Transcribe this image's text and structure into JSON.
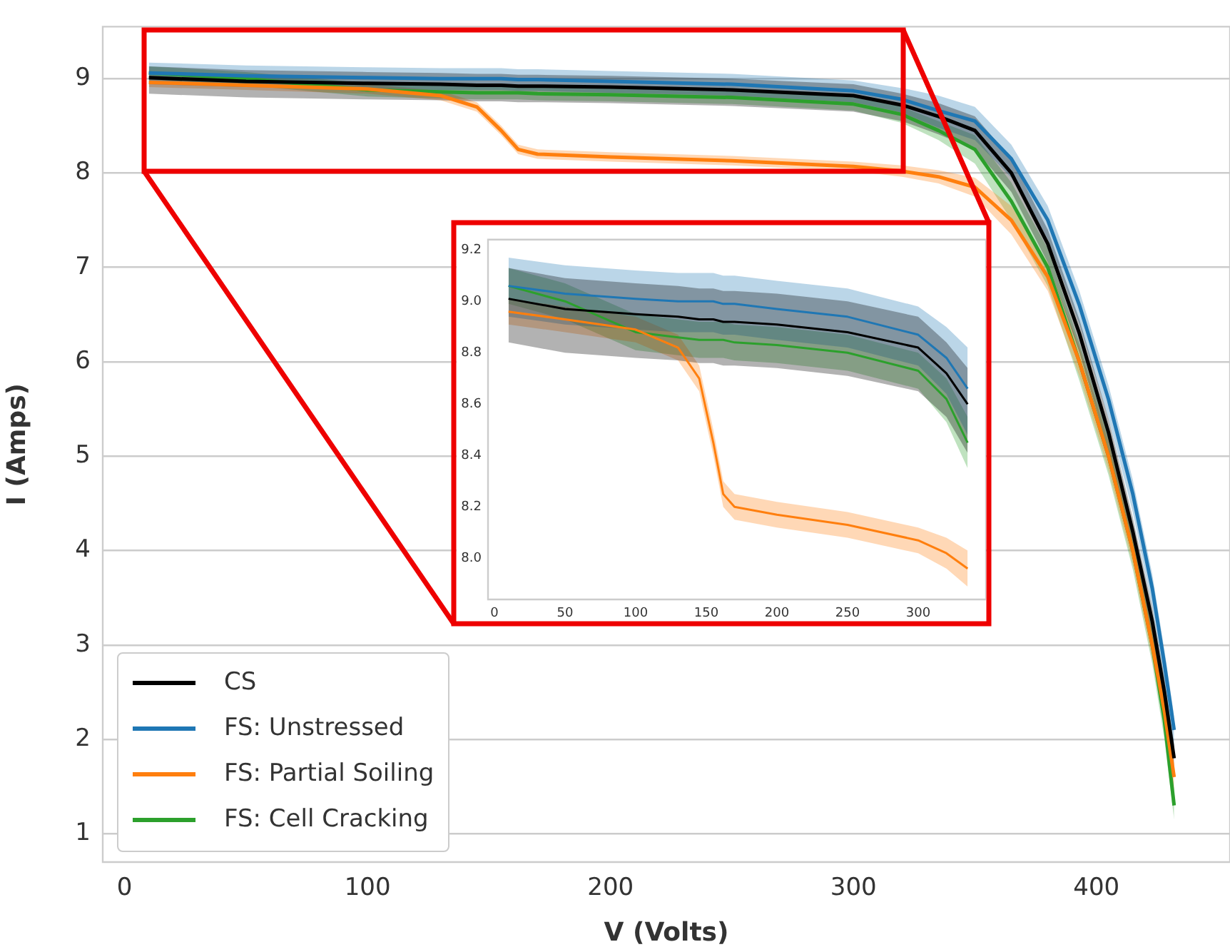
{
  "chart_data": [
    {
      "type": "line",
      "xlabel": "V (Volts)",
      "ylabel": "I (Amps)",
      "xlim": [
        -9,
        455
      ],
      "ylim": [
        0.7,
        9.55
      ],
      "xticks": [
        0,
        100,
        200,
        300,
        400
      ],
      "yticks": [
        1,
        2,
        3,
        4,
        5,
        6,
        7,
        8,
        9
      ],
      "grid": "y",
      "legend": "bottom left",
      "series": [
        {
          "name": "CS",
          "color": "#000000",
          "x": [
            10,
            50,
            100,
            130,
            145,
            155,
            162,
            170,
            200,
            250,
            300,
            320,
            335,
            350,
            365,
            380,
            393,
            405,
            415,
            423,
            428,
            432
          ],
          "values": [
            9.01,
            8.97,
            8.95,
            8.94,
            8.93,
            8.93,
            8.92,
            8.92,
            8.91,
            8.88,
            8.82,
            8.72,
            8.6,
            8.45,
            8.0,
            7.25,
            6.3,
            5.25,
            4.2,
            3.25,
            2.5,
            1.8
          ],
          "lower": [
            8.84,
            8.8,
            8.78,
            8.77,
            8.76,
            8.76,
            8.75,
            8.75,
            8.74,
            8.71,
            8.65,
            8.55,
            8.41,
            8.25,
            7.8,
            7.05,
            6.1,
            5.05,
            4.0,
            3.05,
            2.3,
            1.6
          ],
          "upper": [
            9.13,
            9.09,
            9.07,
            9.06,
            9.05,
            9.05,
            9.04,
            9.04,
            9.03,
            9.0,
            8.94,
            8.84,
            8.74,
            8.6,
            8.15,
            7.4,
            6.45,
            5.4,
            4.35,
            3.4,
            2.65,
            1.95
          ]
        },
        {
          "name": "FS: Unstressed",
          "color": "#1f77b4",
          "x": [
            10,
            50,
            100,
            130,
            145,
            155,
            162,
            170,
            200,
            250,
            300,
            320,
            335,
            350,
            365,
            380,
            393,
            405,
            415,
            423,
            428,
            432
          ],
          "values": [
            9.06,
            9.03,
            9.01,
            9.0,
            9.0,
            9.0,
            8.99,
            8.99,
            8.97,
            8.94,
            8.87,
            8.78,
            8.66,
            8.55,
            8.15,
            7.5,
            6.6,
            5.6,
            4.6,
            3.6,
            2.8,
            2.1
          ],
          "lower": [
            8.94,
            8.91,
            8.89,
            8.88,
            8.88,
            8.88,
            8.87,
            8.87,
            8.85,
            8.82,
            8.75,
            8.64,
            8.48,
            8.35,
            7.95,
            7.3,
            6.4,
            5.4,
            4.4,
            3.4,
            2.6,
            1.9
          ],
          "upper": [
            9.17,
            9.14,
            9.12,
            9.11,
            9.11,
            9.11,
            9.1,
            9.1,
            9.08,
            9.05,
            8.98,
            8.9,
            8.82,
            8.7,
            8.3,
            7.65,
            6.75,
            5.75,
            4.75,
            3.75,
            2.95,
            2.25
          ]
        },
        {
          "name": "FS: Partial Soiling",
          "color": "#ff7f0e",
          "x": [
            10,
            50,
            100,
            130,
            145,
            155,
            162,
            170,
            200,
            250,
            300,
            320,
            335,
            350,
            365,
            380,
            393,
            405,
            415,
            423,
            428,
            432
          ],
          "values": [
            8.96,
            8.93,
            8.89,
            8.82,
            8.7,
            8.45,
            8.25,
            8.2,
            8.17,
            8.13,
            8.07,
            8.02,
            7.96,
            7.85,
            7.5,
            6.9,
            6.0,
            5.0,
            4.0,
            3.0,
            2.3,
            1.6
          ],
          "lower": [
            8.91,
            8.88,
            8.84,
            8.77,
            8.65,
            8.4,
            8.2,
            8.15,
            8.12,
            8.08,
            8.02,
            7.96,
            7.89,
            7.75,
            7.35,
            6.75,
            5.85,
            4.85,
            3.85,
            2.85,
            2.15,
            1.45
          ],
          "upper": [
            9.01,
            8.98,
            8.94,
            8.87,
            8.75,
            8.5,
            8.3,
            8.25,
            8.22,
            8.18,
            8.12,
            8.08,
            8.03,
            7.95,
            7.65,
            7.05,
            6.15,
            5.15,
            4.15,
            3.15,
            2.45,
            1.75
          ]
        },
        {
          "name": "FS: Cell Cracking",
          "color": "#2ca02c",
          "x": [
            10,
            50,
            100,
            130,
            145,
            155,
            162,
            170,
            200,
            250,
            300,
            320,
            335,
            350,
            365,
            380,
            393,
            405,
            415,
            423,
            428,
            432
          ],
          "values": [
            9.06,
            9.0,
            8.88,
            8.86,
            8.85,
            8.85,
            8.85,
            8.84,
            8.83,
            8.8,
            8.73,
            8.62,
            8.45,
            8.25,
            7.7,
            7.0,
            6.0,
            5.0,
            4.0,
            3.0,
            2.2,
            1.3
          ],
          "lower": [
            8.99,
            8.93,
            8.81,
            8.79,
            8.78,
            8.78,
            8.78,
            8.77,
            8.76,
            8.73,
            8.66,
            8.53,
            8.35,
            8.1,
            7.5,
            6.8,
            5.8,
            4.8,
            3.8,
            2.8,
            2.0,
            1.15
          ],
          "upper": [
            9.13,
            9.07,
            8.95,
            8.93,
            8.92,
            8.92,
            8.92,
            8.91,
            8.9,
            8.87,
            8.8,
            8.7,
            8.55,
            8.4,
            7.9,
            7.2,
            6.2,
            5.2,
            4.2,
            3.2,
            2.4,
            1.45
          ]
        }
      ]
    },
    {
      "type": "line",
      "xlim": [
        -4.5,
        348
      ],
      "ylim": [
        7.84,
        9.24
      ],
      "xticks": [
        0,
        50,
        100,
        150,
        200,
        250,
        300
      ],
      "yticks": [
        {
          "value": 8.0,
          "label": "8.0"
        },
        8.2,
        8.4,
        8.6,
        8.8,
        {
          "value": 9.0,
          "label": "9.0"
        },
        9.2
      ],
      "series": [
        {
          "color": "#000000",
          "x": [
            10,
            50,
            100,
            130,
            145,
            155,
            162,
            170,
            200,
            250,
            300,
            320,
            335
          ],
          "values": [
            9.01,
            8.97,
            8.95,
            8.94,
            8.93,
            8.93,
            8.92,
            8.92,
            8.91,
            8.88,
            8.82,
            8.72,
            8.6
          ],
          "lower": [
            8.84,
            8.8,
            8.78,
            8.77,
            8.76,
            8.76,
            8.75,
            8.75,
            8.74,
            8.71,
            8.65,
            8.55,
            8.41
          ],
          "upper": [
            9.13,
            9.09,
            9.07,
            9.06,
            9.05,
            9.05,
            9.04,
            9.04,
            9.03,
            9.0,
            8.94,
            8.84,
            8.74
          ]
        },
        {
          "color": "#1f77b4",
          "x": [
            10,
            50,
            100,
            130,
            145,
            155,
            162,
            170,
            200,
            250,
            300,
            320,
            335
          ],
          "values": [
            9.06,
            9.03,
            9.01,
            9.0,
            9.0,
            9.0,
            8.99,
            8.99,
            8.97,
            8.94,
            8.87,
            8.78,
            8.66
          ],
          "lower": [
            8.94,
            8.91,
            8.89,
            8.88,
            8.88,
            8.88,
            8.87,
            8.87,
            8.85,
            8.82,
            8.75,
            8.64,
            8.48
          ],
          "upper": [
            9.17,
            9.14,
            9.12,
            9.11,
            9.11,
            9.11,
            9.1,
            9.1,
            9.08,
            9.05,
            8.98,
            8.9,
            8.82
          ]
        },
        {
          "color": "#ff7f0e",
          "x": [
            10,
            50,
            100,
            130,
            145,
            155,
            162,
            170,
            200,
            250,
            300,
            320,
            335
          ],
          "values": [
            8.96,
            8.93,
            8.89,
            8.82,
            8.7,
            8.45,
            8.25,
            8.2,
            8.17,
            8.13,
            8.07,
            8.02,
            7.96
          ],
          "lower": [
            8.91,
            8.88,
            8.84,
            8.77,
            8.65,
            8.4,
            8.2,
            8.15,
            8.12,
            8.08,
            8.02,
            7.96,
            7.89
          ],
          "upper": [
            9.01,
            8.98,
            8.94,
            8.87,
            8.75,
            8.5,
            8.3,
            8.25,
            8.22,
            8.18,
            8.12,
            8.08,
            8.03
          ]
        },
        {
          "color": "#2ca02c",
          "x": [
            10,
            50,
            100,
            130,
            145,
            155,
            162,
            170,
            200,
            250,
            300,
            320,
            335
          ],
          "values": [
            9.06,
            9.0,
            8.88,
            8.86,
            8.85,
            8.85,
            8.85,
            8.84,
            8.83,
            8.8,
            8.73,
            8.62,
            8.45
          ],
          "lower": [
            8.99,
            8.93,
            8.81,
            8.79,
            8.78,
            8.78,
            8.78,
            8.77,
            8.76,
            8.73,
            8.66,
            8.53,
            8.35
          ],
          "upper": [
            9.13,
            9.07,
            8.95,
            8.93,
            8.92,
            8.92,
            8.92,
            8.91,
            8.9,
            8.87,
            8.8,
            8.7,
            8.55
          ]
        }
      ]
    }
  ]
}
